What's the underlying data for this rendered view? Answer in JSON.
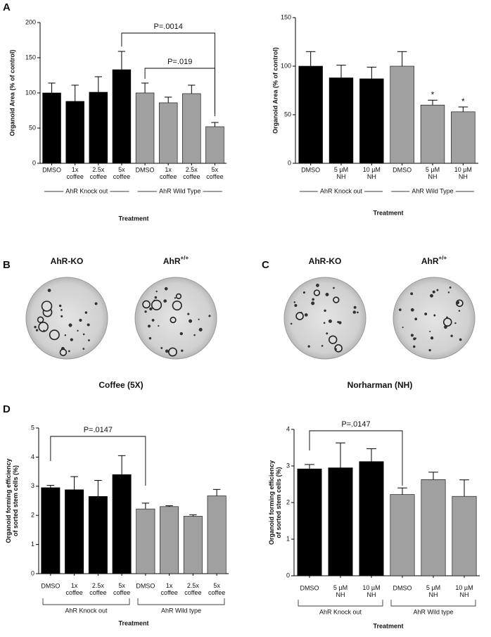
{
  "panels": {
    "a": "A",
    "b": "B",
    "c": "C",
    "d": "D"
  },
  "images": {
    "b": {
      "left": "AhR-KO",
      "right_base": "AhR",
      "right_sup": "+/+",
      "caption": "Coffee (5X)"
    },
    "c": {
      "left": "AhR-KO",
      "right_base": "AhR",
      "right_sup": "+/+",
      "caption": "Norharman (NH)"
    }
  },
  "chart_data": [
    {
      "type": "bar",
      "y_label": "Organoid Area (% of control)",
      "x_label": "Treatment",
      "categories": [
        "DMSO",
        "1x\ncoffee",
        "2.5x\ncoffee",
        "5x\ncoffee",
        "DMSO",
        "1x\ncoffee",
        "2.5x\ncoffee",
        "5x\ncoffee"
      ],
      "values": [
        100,
        88,
        101,
        133,
        100,
        86,
        99,
        52
      ],
      "errors": [
        14,
        23,
        22,
        26,
        14,
        8,
        12,
        6
      ],
      "colors": [
        "#000000",
        "#000000",
        "#000000",
        "#000000",
        "#a0a0a0",
        "#a0a0a0",
        "#a0a0a0",
        "#a0a0a0"
      ],
      "groups": [
        "AhR Knock out",
        "AhR Wild Type"
      ],
      "annotations": [
        "P=.0014",
        "P=.019"
      ],
      "ylim": [
        0,
        200
      ],
      "yticks": [
        0,
        50,
        100,
        150,
        200
      ]
    },
    {
      "type": "bar",
      "y_label": "Organoid Area (% of control)",
      "x_label": "Treatment",
      "categories": [
        "DMSO",
        "5 µM\nNH",
        "10 µM\nNH",
        "DMSO",
        "5 µM\nNH",
        "10 µM\nNH"
      ],
      "values": [
        100,
        88,
        87,
        100,
        60,
        53
      ],
      "errors": [
        15,
        13,
        12,
        15,
        5,
        5
      ],
      "colors": [
        "#000000",
        "#000000",
        "#000000",
        "#a0a0a0",
        "#a0a0a0",
        "#a0a0a0"
      ],
      "groups": [
        "AhR Knock out",
        "AhR Wild Type"
      ],
      "annotations": [
        "*",
        "*"
      ],
      "ylim": [
        0,
        150
      ],
      "yticks": [
        0,
        50,
        100,
        150
      ]
    },
    {
      "type": "bar",
      "y_label": "Organoid forming efficiency\nof sorted stem cells (%)",
      "x_label": "Treatment",
      "categories": [
        "DMSO",
        "1x\ncoffee",
        "2.5x\ncoffee",
        "5x\ncoffee",
        "DMSO",
        "1x\ncoffee",
        "2.5x\ncoffee",
        "5x\ncoffee"
      ],
      "values": [
        2.95,
        2.88,
        2.65,
        3.4,
        2.22,
        2.3,
        1.97,
        2.67
      ],
      "errors": [
        0.08,
        0.45,
        0.55,
        0.65,
        0.2,
        0.03,
        0.05,
        0.22
      ],
      "colors": [
        "#000000",
        "#000000",
        "#000000",
        "#000000",
        "#a0a0a0",
        "#a0a0a0",
        "#a0a0a0",
        "#a0a0a0"
      ],
      "groups": [
        "AhR Knock out",
        "AhR Wild type"
      ],
      "annotations": [
        "P=.0147"
      ],
      "ylim": [
        0,
        5
      ],
      "yticks": [
        0,
        1,
        2,
        3,
        4,
        5
      ]
    },
    {
      "type": "bar",
      "y_label": "Organoid forming efficiency\nof sorted stem cells (%)",
      "x_label": "Treatment",
      "categories": [
        "DMSO",
        "5 µM\nNH",
        "10 µM\nNH",
        "DMSO",
        "5 µM\nNH",
        "10 µM\nNH"
      ],
      "values": [
        2.92,
        2.95,
        3.12,
        2.22,
        2.63,
        2.17
      ],
      "errors": [
        0.12,
        0.68,
        0.35,
        0.18,
        0.2,
        0.45
      ],
      "colors": [
        "#000000",
        "#000000",
        "#000000",
        "#a0a0a0",
        "#a0a0a0",
        "#a0a0a0"
      ],
      "groups": [
        "AhR Knock out",
        "AhR Wild type"
      ],
      "annotations": [
        "P=.0147"
      ],
      "ylim": [
        0,
        4
      ],
      "yticks": [
        0,
        1,
        2,
        3,
        4
      ]
    }
  ]
}
